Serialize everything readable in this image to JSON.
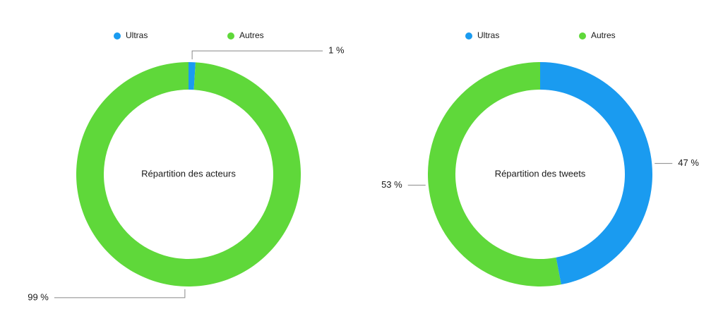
{
  "chart_data": [
    {
      "type": "pie",
      "title": "Répartition des acteurs",
      "categories": [
        "Ultras",
        "Autres"
      ],
      "values": [
        1,
        99
      ],
      "value_labels": [
        "1 %",
        "99 %"
      ],
      "colors": [
        "#1a9bf0",
        "#5fd83a"
      ]
    },
    {
      "type": "pie",
      "title": "Répartition des tweets",
      "categories": [
        "Ultras",
        "Autres"
      ],
      "values": [
        47,
        53
      ],
      "value_labels": [
        "47 %",
        "53 %"
      ],
      "colors": [
        "#1a9bf0",
        "#5fd83a"
      ]
    }
  ]
}
